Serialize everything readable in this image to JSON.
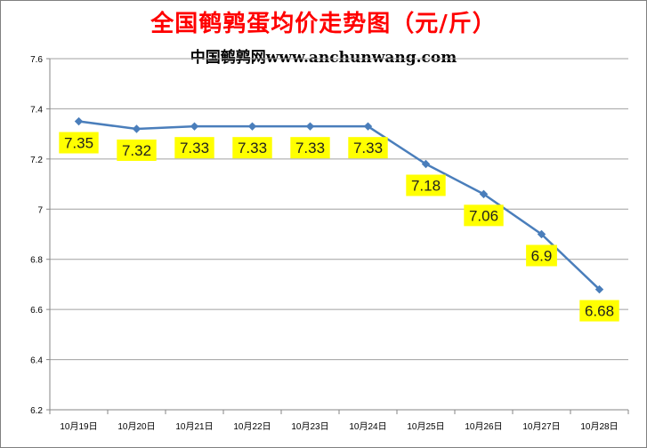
{
  "title": "全国鹌鹑蛋均价走势图（元/斤）",
  "subtitle": "中国鹌鹑网www.anchunwang.com",
  "colors": {
    "title": "#ff0000",
    "line": "#4a7ebb",
    "label_bg": "#ffff00",
    "grid": "#a0a0a0"
  },
  "chart_data": {
    "type": "line",
    "title": "全国鹌鹑蛋均价走势图（元/斤）",
    "xlabel": "",
    "ylabel": "",
    "ylim": [
      6.2,
      7.6
    ],
    "yticks": [
      "6.2",
      "6.4",
      "6.6",
      "6.8",
      "7",
      "7.2",
      "7.4",
      "7.6"
    ],
    "grid": "horizontal",
    "categories": [
      "10月19日",
      "10月20日",
      "10月21日",
      "10月22日",
      "10月23日",
      "10月24日",
      "10月25日",
      "10月26日",
      "10月27日",
      "10月28日"
    ],
    "series": [
      {
        "values": [
          7.35,
          7.32,
          7.33,
          7.33,
          7.33,
          7.33,
          7.18,
          7.06,
          6.9,
          6.68
        ],
        "labels": [
          "7.35",
          "7.32",
          "7.33",
          "7.33",
          "7.33",
          "7.33",
          "7.18",
          "7.06",
          "6.9",
          "6.68"
        ]
      }
    ]
  }
}
